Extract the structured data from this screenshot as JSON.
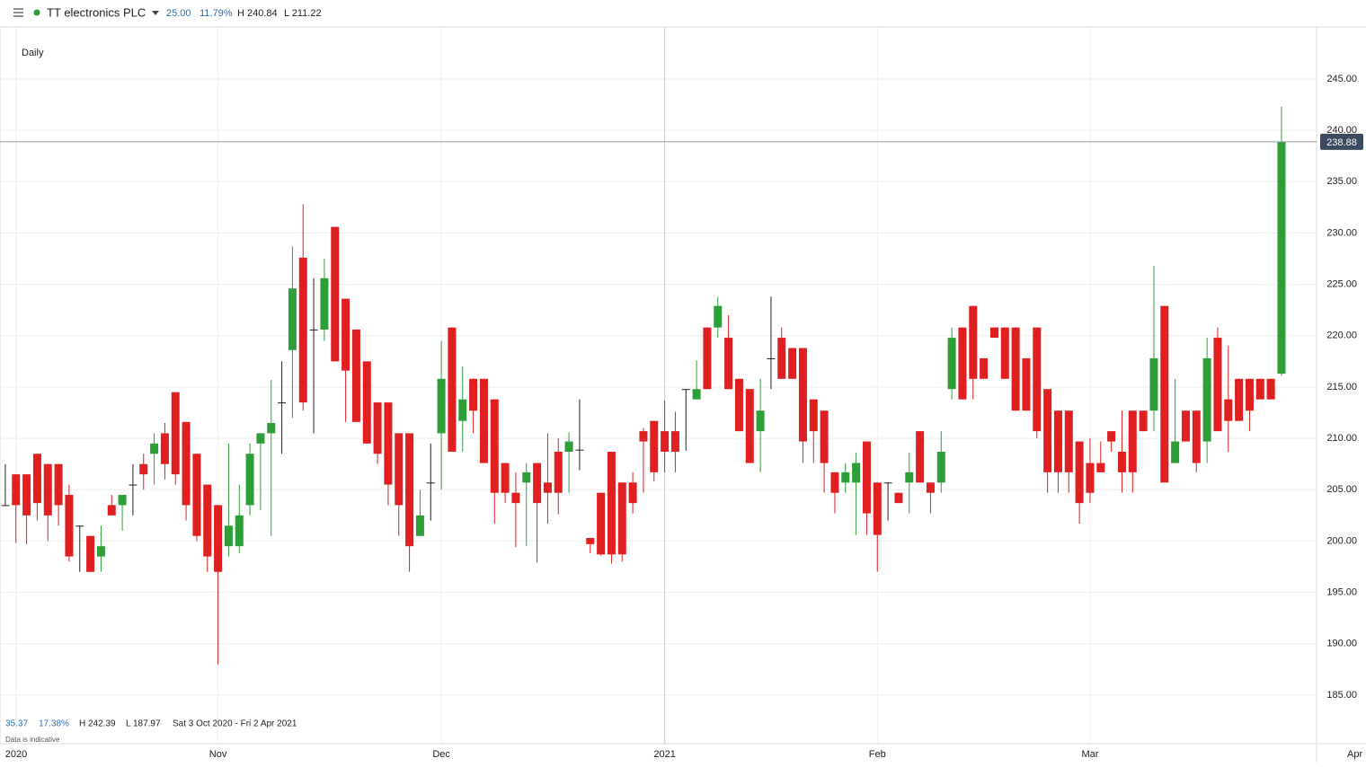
{
  "header": {
    "instrument": "TT electronics PLC",
    "change": "25.00",
    "change_pct": "11.79%",
    "high": "H 240.84",
    "low": "L 211.22"
  },
  "footer": {
    "change": "35.37",
    "change_pct": "17.38%",
    "high": "H 242.39",
    "low": "L 187.97",
    "range": "Sat 3 Oct 2020 - Fri 2 Apr 2021",
    "note": "Data is indicative"
  },
  "chart_data": {
    "type": "candlestick",
    "interval": "Daily",
    "up_color": "#2e9e38",
    "down_color": "#e02020",
    "flat_color": "#222222",
    "grid": true,
    "last_price": 238.88,
    "xlim": [
      -0.5,
      123.3
    ],
    "xticks": [
      {
        "value": 1,
        "label": "2020"
      },
      {
        "value": 20,
        "label": "Nov"
      },
      {
        "value": 41,
        "label": "Dec"
      },
      {
        "value": 62,
        "label": "2021"
      },
      {
        "value": 82,
        "label": "Feb"
      },
      {
        "value": 102,
        "label": "Mar"
      },
      {
        "value": 126.9,
        "label": "Apr"
      }
    ],
    "ylim": [
      180.27,
      250.07
    ],
    "yticks": [
      {
        "value": 185,
        "label": "185.00"
      },
      {
        "value": 190,
        "label": "190.00"
      },
      {
        "value": 195,
        "label": "195.00"
      },
      {
        "value": 200,
        "label": "200.00"
      },
      {
        "value": 205,
        "label": "205.00"
      },
      {
        "value": 210,
        "label": "210.00"
      },
      {
        "value": 215,
        "label": "215.00"
      },
      {
        "value": 220,
        "label": "220.00"
      },
      {
        "value": 225,
        "label": "225.00"
      },
      {
        "value": 230,
        "label": "230.00"
      },
      {
        "value": 235,
        "label": "235.00"
      },
      {
        "value": 240,
        "label": "240.00"
      },
      {
        "value": 245,
        "label": "245.00"
      }
    ],
    "open": [
      203.5,
      206.5,
      206.5,
      208.5,
      207.5,
      207.5,
      204.5,
      201.5,
      200.5,
      198.5,
      203.5,
      203.5,
      205.5,
      207.5,
      208.5,
      210.5,
      214.5,
      211.6,
      208.5,
      205.5,
      203.5,
      199.5,
      199.5,
      203.5,
      209.5,
      210.5,
      213.5,
      218.6,
      227.6,
      220.6,
      220.6,
      230.6,
      223.6,
      220.6,
      217.5,
      213.5,
      213.5,
      210.5,
      210.5,
      200.5,
      205.7,
      210.5,
      220.8,
      211.7,
      215.8,
      215.8,
      213.8,
      207.6,
      204.7,
      205.7,
      207.6,
      205.7,
      208.7,
      208.7,
      208.9,
      200.3,
      204.7,
      208.7,
      205.7,
      205.7,
      210.7,
      211.7,
      210.7,
      210.7,
      214.8,
      213.8,
      220.8,
      220.8,
      219.8,
      215.8,
      214.8,
      210.7,
      217.8,
      219.8,
      218.8,
      218.8,
      213.8,
      212.7,
      206.7,
      205.7,
      205.7,
      209.7,
      205.7,
      205.7,
      204.7,
      205.7,
      210.7,
      205.7,
      205.7,
      214.8,
      220.8,
      222.9,
      217.8,
      220.8,
      220.8,
      220.8,
      217.8,
      220.8,
      214.8,
      212.7,
      212.7,
      209.7,
      207.6,
      207.6,
      210.7,
      208.7,
      212.7,
      212.7,
      212.7,
      222.9,
      207.6,
      212.7,
      212.7,
      209.7,
      219.8,
      213.8,
      215.8,
      215.8,
      215.8,
      215.8,
      216.3
    ],
    "high": [
      207.5,
      206.5,
      206.5,
      208.5,
      207.5,
      207.5,
      205.5,
      201.5,
      200.5,
      201.5,
      204.5,
      204.5,
      207.5,
      208.5,
      210.5,
      211.5,
      214.5,
      211.6,
      208.5,
      205.5,
      203.5,
      209.5,
      205.5,
      209.5,
      210.5,
      215.7,
      217.5,
      228.7,
      232.8,
      225.6,
      227.5,
      230.6,
      223.6,
      220.6,
      217.5,
      213.5,
      213.5,
      210.5,
      210.5,
      205,
      209.5,
      219.5,
      220.8,
      217,
      215.8,
      215.8,
      213.8,
      207.6,
      206.7,
      207.6,
      207.6,
      210.5,
      210,
      210.6,
      213.8,
      200.3,
      204.7,
      208.7,
      205.7,
      206.7,
      211,
      211.7,
      213.7,
      212.6,
      214.8,
      217.6,
      220.8,
      223.8,
      222,
      215.8,
      214.8,
      215.8,
      223.8,
      220.8,
      218.8,
      218.8,
      213.8,
      212.7,
      206.7,
      207.6,
      208.6,
      209.7,
      205.7,
      205.7,
      204.7,
      208.6,
      210.7,
      205.7,
      210.7,
      220.8,
      220.8,
      222.9,
      217.8,
      220.8,
      220.8,
      220.8,
      217.8,
      220.8,
      214.8,
      212.7,
      212.7,
      209.7,
      210,
      209.7,
      210.7,
      212.7,
      212.7,
      212.7,
      226.8,
      222.9,
      215.8,
      212.7,
      212.7,
      219.8,
      220.8,
      219,
      215.8,
      215.8,
      215.8,
      215.8,
      242.3
    ],
    "low": [
      203.5,
      199.8,
      199.7,
      202,
      200,
      201.5,
      198,
      197,
      197,
      197,
      202.5,
      201,
      202.5,
      205,
      205.5,
      206,
      205.5,
      202,
      200,
      197,
      188,
      198.5,
      198.8,
      202.5,
      203,
      200.5,
      208.5,
      212,
      212.7,
      210.5,
      219.5,
      217.5,
      211.6,
      211.6,
      209.5,
      207.5,
      203.5,
      200.5,
      197,
      200.5,
      202,
      205,
      208.7,
      208.7,
      210.5,
      207.6,
      201.7,
      203.7,
      199.4,
      199.5,
      197.9,
      201.7,
      202.6,
      204.7,
      206.9,
      198.8,
      198.6,
      197.8,
      198,
      202.7,
      204.7,
      205.8,
      206.7,
      206.7,
      208.8,
      213.8,
      214.8,
      219.8,
      214.8,
      210.7,
      207.6,
      206.7,
      214.8,
      215.8,
      215.8,
      207.6,
      207.6,
      204.7,
      202.7,
      204.7,
      200.6,
      200.6,
      197,
      202,
      203.7,
      202.7,
      205.7,
      202.7,
      204.7,
      213.8,
      213.8,
      213.8,
      215.8,
      219.8,
      215.8,
      212.7,
      212.7,
      210,
      204.7,
      204.7,
      204.7,
      201.7,
      203.7,
      206.7,
      208.7,
      204.7,
      204.7,
      210.7,
      210.7,
      205.7,
      207.6,
      209.7,
      206.7,
      207.6,
      210.7,
      208.7,
      211.7,
      210.7,
      213.8,
      213.8,
      216.1
    ],
    "close": [
      203.5,
      203.5,
      202.5,
      203.7,
      202.5,
      203.5,
      198.5,
      201.5,
      197,
      199.5,
      202.5,
      204.5,
      205.5,
      206.5,
      209.5,
      207.5,
      206.5,
      203.5,
      200.5,
      198.5,
      197,
      201.5,
      202.5,
      208.5,
      210.5,
      211.5,
      213.5,
      224.6,
      213.5,
      220.6,
      225.6,
      217.5,
      216.6,
      211.6,
      209.5,
      208.5,
      205.5,
      203.5,
      199.5,
      202.5,
      205.7,
      215.8,
      208.7,
      213.8,
      212.7,
      207.6,
      204.7,
      204.7,
      203.7,
      206.7,
      203.7,
      204.7,
      204.7,
      209.7,
      208.9,
      199.7,
      198.7,
      198.7,
      198.7,
      203.7,
      209.7,
      206.7,
      208.7,
      208.7,
      214.8,
      214.8,
      214.8,
      222.9,
      214.8,
      210.7,
      207.6,
      212.7,
      217.8,
      215.8,
      215.8,
      209.7,
      210.7,
      207.6,
      204.7,
      206.7,
      207.6,
      202.7,
      200.6,
      205.7,
      203.7,
      206.7,
      205.7,
      204.7,
      208.7,
      219.8,
      213.8,
      215.8,
      215.8,
      219.8,
      215.8,
      212.7,
      212.7,
      210.7,
      206.7,
      206.7,
      206.7,
      203.7,
      204.7,
      206.7,
      209.7,
      206.7,
      206.7,
      210.7,
      217.8,
      205.7,
      209.7,
      209.7,
      207.6,
      217.8,
      210.7,
      211.7,
      211.7,
      212.7,
      213.8,
      213.8,
      238.88
    ]
  }
}
